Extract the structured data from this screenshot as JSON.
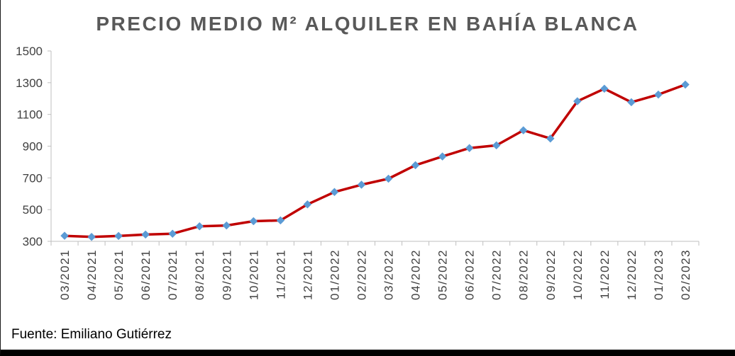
{
  "chart_data": {
    "type": "line",
    "title": "PRECIO MEDIO M² ALQUILER EN BAHÍA BLANCA",
    "xlabel": "",
    "ylabel": "",
    "categories": [
      "03/2021",
      "04/2021",
      "05/2021",
      "06/2021",
      "07/2021",
      "08/2021",
      "09/2021",
      "10/2021",
      "11/2021",
      "12/2021",
      "01/2022",
      "02/2022",
      "03/2022",
      "04/2022",
      "05/2022",
      "06/2022",
      "07/2022",
      "08/2022",
      "09/2022",
      "10/2022",
      "11/2022",
      "12/2022",
      "01/2023",
      "02/2023"
    ],
    "series": [
      {
        "values": [
          335,
          328,
          334,
          343,
          348,
          395,
          400,
          427,
          432,
          533,
          611,
          657,
          695,
          780,
          835,
          888,
          905,
          1000,
          948,
          1183,
          1262,
          1177,
          1225,
          1288
        ]
      }
    ],
    "ylim": [
      300,
      1500
    ],
    "yticks": [
      300,
      500,
      700,
      900,
      1100,
      1300,
      1500
    ],
    "grid": false,
    "line_color": "#c00000",
    "marker_color": "#5b9bd5",
    "marker": "diamond"
  },
  "source_text": "Fuente: Emiliano Gutiérrez"
}
